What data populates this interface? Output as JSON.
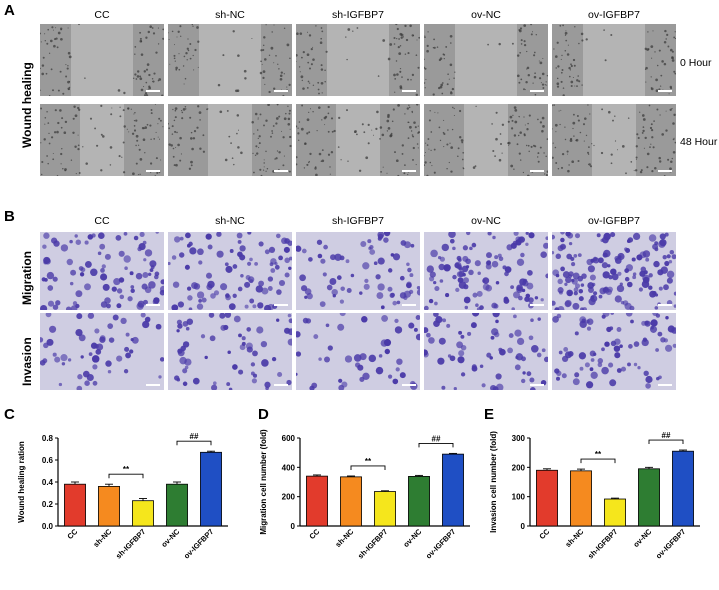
{
  "figure": {
    "panels": {
      "A": "A",
      "B": "B",
      "C": "C",
      "D": "D",
      "E": "E"
    },
    "groups": [
      "CC",
      "sh-NC",
      "sh-IGFBP7",
      "ov-NC",
      "ov-IGFBP7"
    ],
    "panel_a": {
      "row_label": "Wound healing",
      "time_labels": [
        "0 Hour",
        "48 Hour"
      ]
    },
    "panel_b": {
      "row_labels": [
        "Migration",
        "Invasion"
      ]
    },
    "colors": {
      "CC": "#e23b2c",
      "sh-NC": "#f58a1f",
      "sh-IGFBP7": "#f5e61c",
      "ov-NC": "#2e7d32",
      "ov-IGFBP7": "#1f4fc4",
      "wound_tile": "#9a9a9a",
      "stain_tile": "#cfcde2",
      "cell_stain": "#4a3aa8"
    }
  },
  "chart_data": [
    {
      "type": "bar",
      "panel": "C",
      "categories": [
        "CC",
        "sh-NC",
        "sh-IGFBP7",
        "ov-NC",
        "ov-IGFBP7"
      ],
      "values": [
        0.38,
        0.36,
        0.23,
        0.38,
        0.67
      ],
      "errors": [
        0.02,
        0.02,
        0.02,
        0.02,
        0.01
      ],
      "ylabel": "Wound healing ration",
      "ylim": [
        0,
        0.8
      ],
      "yticks": [
        "0.0",
        "0.2",
        "0.4",
        "0.6",
        "0.8"
      ],
      "annotations": [
        {
          "between": [
            "sh-NC",
            "sh-IGFBP7"
          ],
          "text": "**"
        },
        {
          "between": [
            "ov-NC",
            "ov-IGFBP7"
          ],
          "text": "##"
        }
      ]
    },
    {
      "type": "bar",
      "panel": "D",
      "categories": [
        "CC",
        "sh-NC",
        "sh-IGFBP7",
        "ov-NC",
        "ov-IGFBP7"
      ],
      "values": [
        340,
        335,
        235,
        338,
        490
      ],
      "errors": [
        8,
        6,
        5,
        7,
        5
      ],
      "ylabel": "Migration cell number (fold)",
      "ylim": [
        0,
        600
      ],
      "yticks": [
        "0",
        "200",
        "400",
        "600"
      ],
      "annotations": [
        {
          "between": [
            "sh-NC",
            "sh-IGFBP7"
          ],
          "text": "**"
        },
        {
          "between": [
            "ov-NC",
            "ov-IGFBP7"
          ],
          "text": "##"
        }
      ]
    },
    {
      "type": "bar",
      "panel": "E",
      "categories": [
        "CC",
        "sh-NC",
        "sh-IGFBP7",
        "ov-NC",
        "ov-IGFBP7"
      ],
      "values": [
        190,
        188,
        92,
        195,
        255
      ],
      "errors": [
        5,
        6,
        3,
        5,
        4
      ],
      "ylabel": "Invasion cell number (fold)",
      "ylim": [
        0,
        300
      ],
      "yticks": [
        "0",
        "100",
        "200",
        "300"
      ],
      "annotations": [
        {
          "between": [
            "sh-NC",
            "sh-IGFBP7"
          ],
          "text": "**"
        },
        {
          "between": [
            "ov-NC",
            "ov-IGFBP7"
          ],
          "text": "##"
        }
      ]
    }
  ]
}
